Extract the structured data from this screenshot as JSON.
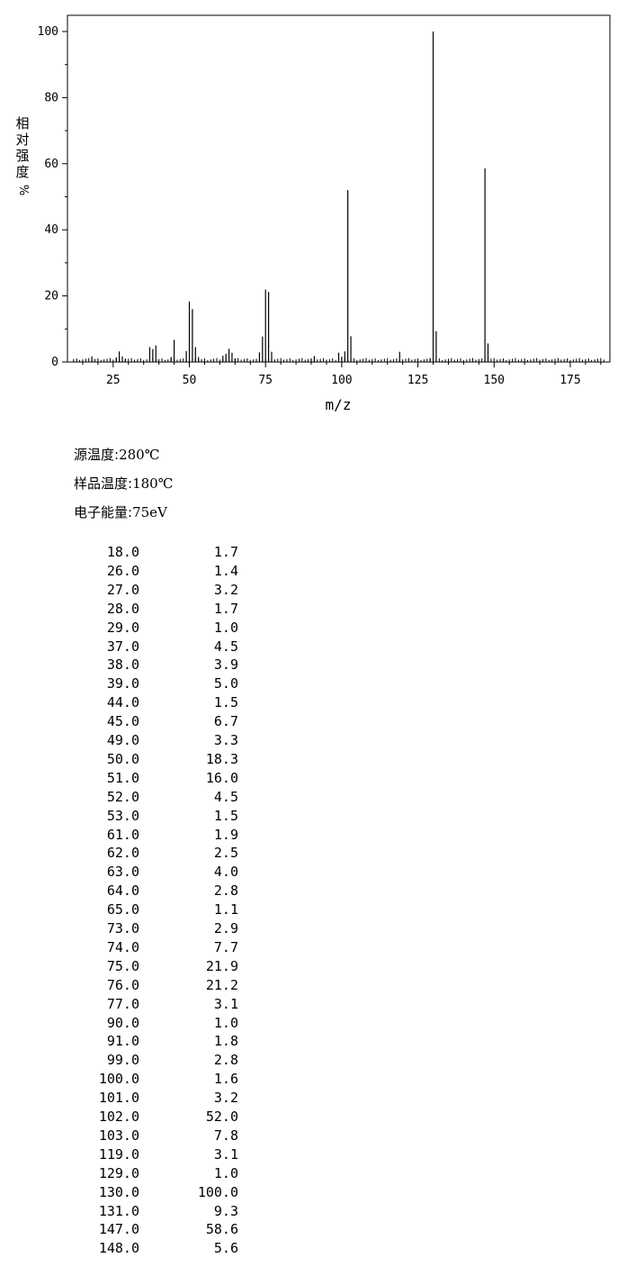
{
  "chart_data": {
    "type": "bar",
    "xlabel": "m/z",
    "ylabel": [
      "相",
      "对",
      "强",
      "度",
      "%"
    ],
    "xlim": [
      10,
      188
    ],
    "ylim": [
      0,
      105
    ],
    "xticks": [
      "25",
      "50",
      "75",
      "100",
      "125",
      "150",
      "175"
    ],
    "yticks": [
      "0",
      "20",
      "40",
      "60",
      "80",
      "100"
    ],
    "peaks": [
      {
        "mz": "18.0",
        "intensity": "1.7"
      },
      {
        "mz": "26.0",
        "intensity": "1.4"
      },
      {
        "mz": "27.0",
        "intensity": "3.2"
      },
      {
        "mz": "28.0",
        "intensity": "1.7"
      },
      {
        "mz": "29.0",
        "intensity": "1.0"
      },
      {
        "mz": "37.0",
        "intensity": "4.5"
      },
      {
        "mz": "38.0",
        "intensity": "3.9"
      },
      {
        "mz": "39.0",
        "intensity": "5.0"
      },
      {
        "mz": "44.0",
        "intensity": "1.5"
      },
      {
        "mz": "45.0",
        "intensity": "6.7"
      },
      {
        "mz": "49.0",
        "intensity": "3.3"
      },
      {
        "mz": "50.0",
        "intensity": "18.3"
      },
      {
        "mz": "51.0",
        "intensity": "16.0"
      },
      {
        "mz": "52.0",
        "intensity": "4.5"
      },
      {
        "mz": "53.0",
        "intensity": "1.5"
      },
      {
        "mz": "61.0",
        "intensity": "1.9"
      },
      {
        "mz": "62.0",
        "intensity": "2.5"
      },
      {
        "mz": "63.0",
        "intensity": "4.0"
      },
      {
        "mz": "64.0",
        "intensity": "2.8"
      },
      {
        "mz": "65.0",
        "intensity": "1.1"
      },
      {
        "mz": "73.0",
        "intensity": "2.9"
      },
      {
        "mz": "74.0",
        "intensity": "7.7"
      },
      {
        "mz": "75.0",
        "intensity": "21.9"
      },
      {
        "mz": "76.0",
        "intensity": "21.2"
      },
      {
        "mz": "77.0",
        "intensity": "3.1"
      },
      {
        "mz": "90.0",
        "intensity": "1.0"
      },
      {
        "mz": "91.0",
        "intensity": "1.8"
      },
      {
        "mz": "99.0",
        "intensity": "2.8"
      },
      {
        "mz": "100.0",
        "intensity": "1.6"
      },
      {
        "mz": "101.0",
        "intensity": "3.2"
      },
      {
        "mz": "102.0",
        "intensity": "52.0"
      },
      {
        "mz": "103.0",
        "intensity": "7.8"
      },
      {
        "mz": "119.0",
        "intensity": "3.1"
      },
      {
        "mz": "129.0",
        "intensity": "1.0"
      },
      {
        "mz": "130.0",
        "intensity": "100.0"
      },
      {
        "mz": "131.0",
        "intensity": "9.3"
      },
      {
        "mz": "147.0",
        "intensity": "58.6"
      },
      {
        "mz": "148.0",
        "intensity": "5.6"
      }
    ]
  },
  "conditions": [
    {
      "label": "源温度:",
      "value": "280℃"
    },
    {
      "label": "样品温度:",
      "value": "180℃"
    },
    {
      "label": "电子能量:",
      "value": "75eV"
    }
  ]
}
